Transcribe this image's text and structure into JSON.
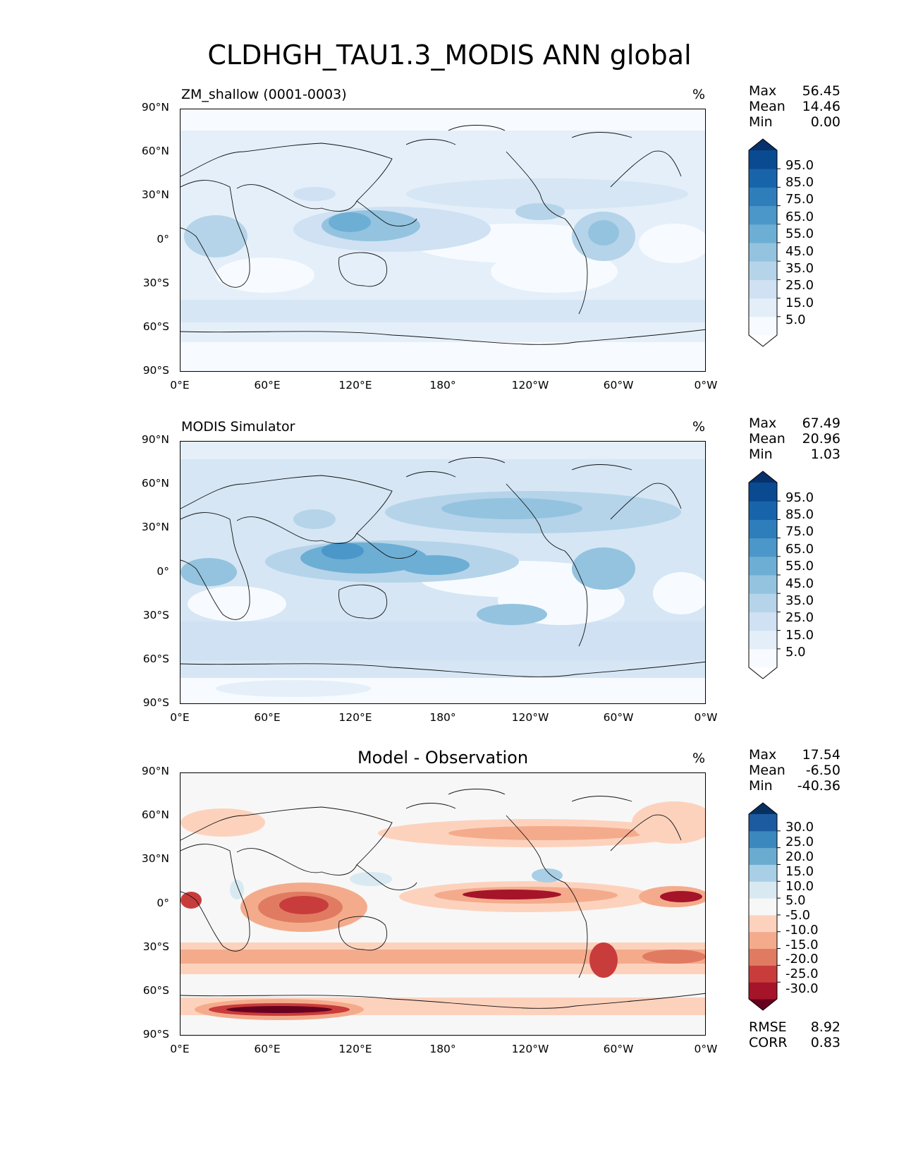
{
  "title": "CLDHGH_TAU1.3_MODIS ANN global",
  "lat_labels": [
    "90°N",
    "60°N",
    "30°N",
    "0°",
    "30°S",
    "60°S",
    "90°S"
  ],
  "lon_labels": [
    "0°E",
    "60°E",
    "120°E",
    "180°",
    "120°W",
    "60°W",
    "0°W"
  ],
  "panels": [
    {
      "id": "model",
      "title": "ZM_shallow (0001-0003)",
      "title_style": "left",
      "units": "%",
      "stats": {
        "max_label": "Max",
        "max": "56.45",
        "mean_label": "Mean",
        "mean": "14.46",
        "min_label": "Min",
        "min": "0.00"
      },
      "colorbar": {
        "labels": [
          "95.0",
          "85.0",
          "75.0",
          "65.0",
          "55.0",
          "45.0",
          "35.0",
          "25.0",
          "15.0",
          "5.0"
        ],
        "colors": [
          "#ffffff",
          "#f7fbff",
          "#e3eef8",
          "#cfe1f2",
          "#b5d4e9",
          "#93c3df",
          "#6daed5",
          "#4b97c9",
          "#2f7ebc",
          "#1864aa",
          "#0a4a90",
          "#08306b"
        ]
      }
    },
    {
      "id": "obs",
      "title": "MODIS Simulator",
      "title_style": "left",
      "units": "%",
      "stats": {
        "max_label": "Max",
        "max": "67.49",
        "mean_label": "Mean",
        "mean": "20.96",
        "min_label": "Min",
        "min": "1.03"
      },
      "colorbar": {
        "labels": [
          "95.0",
          "85.0",
          "75.0",
          "65.0",
          "55.0",
          "45.0",
          "35.0",
          "25.0",
          "15.0",
          "5.0"
        ],
        "colors": [
          "#ffffff",
          "#f7fbff",
          "#e3eef8",
          "#cfe1f2",
          "#b5d4e9",
          "#93c3df",
          "#6daed5",
          "#4b97c9",
          "#2f7ebc",
          "#1864aa",
          "#0a4a90",
          "#08306b"
        ]
      }
    },
    {
      "id": "diff",
      "title": "Model - Observation",
      "title_style": "center",
      "units": "%",
      "stats": {
        "max_label": "Max",
        "max": "17.54",
        "mean_label": "Mean",
        "mean": "-6.50",
        "min_label": "Min",
        "min": "-40.36"
      },
      "metrics": {
        "rmse_label": "RMSE",
        "rmse": "8.92",
        "corr_label": "CORR",
        "corr": "0.83"
      },
      "colorbar": {
        "labels": [
          "30.0",
          "25.0",
          "20.0",
          "15.0",
          "10.0",
          "5.0",
          "-5.0",
          "-10.0",
          "-15.0",
          "-20.0",
          "-25.0",
          "-30.0"
        ],
        "colors": [
          "#67001f",
          "#a51429",
          "#c93c3c",
          "#e07b62",
          "#f4ab8c",
          "#fdd2bd",
          "#f7f7f7",
          "#d8e9f1",
          "#a8cfe5",
          "#6aacd0",
          "#3a88bd",
          "#1c5b9f",
          "#053061"
        ]
      }
    }
  ]
}
